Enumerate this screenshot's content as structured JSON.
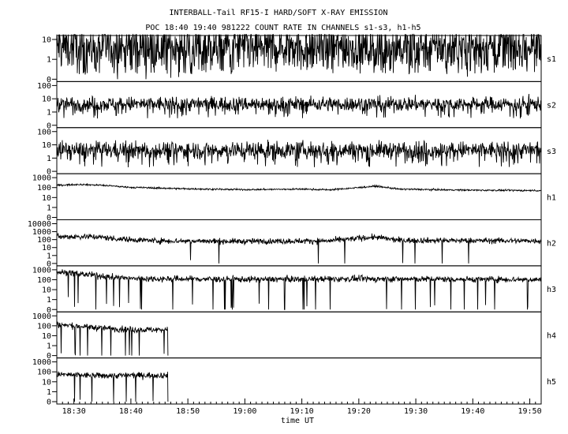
{
  "chart_data": {
    "type": "line",
    "title": "INTERBALL-Tail RF15-I HARD/SOFT X-RAY EMISSION",
    "subtitle": "POC 18:40 19:40 981222  COUNT RATE IN CHANNELS s1-s3, h1-h5",
    "xlabel": "time UT",
    "x_ticks": [
      "18:30",
      "18:40",
      "18:50",
      "19:00",
      "19:10",
      "19:20",
      "19:30",
      "19:40",
      "19:50"
    ],
    "xlim": [
      "18:27",
      "19:52"
    ],
    "y_scale": "log",
    "grid": false,
    "panels": [
      {
        "name": "s1",
        "y_ticks": [
          "10",
          "1",
          "0"
        ],
        "ylim": [
          0,
          10
        ],
        "segments": [
          {
            "start": "18:27",
            "end": "19:52",
            "level": 4.5,
            "noise": 1.2,
            "dip_prob": 0.08,
            "dip_depth": 1.4
          }
        ]
      },
      {
        "name": "s2",
        "y_ticks": [
          "100",
          "10",
          "1",
          "0"
        ],
        "ylim": [
          0,
          100
        ],
        "segments": [
          {
            "start": "18:27",
            "end": "19:52",
            "level": 4.0,
            "noise": 0.55,
            "dip_prob": 0.05,
            "dip_depth": 1.1
          }
        ]
      },
      {
        "name": "s3",
        "y_ticks": [
          "100",
          "10",
          "1",
          "0"
        ],
        "ylim": [
          0,
          100
        ],
        "segments": [
          {
            "start": "18:27",
            "end": "19:52",
            "level": 4.0,
            "noise": 0.65,
            "dip_prob": 0.06,
            "dip_depth": 1.3
          }
        ]
      },
      {
        "name": "h1",
        "y_ticks": [
          "1000",
          "100",
          "10",
          "1",
          "0"
        ],
        "ylim": [
          0,
          1000
        ],
        "segments": [
          {
            "start": "18:27",
            "end": "19:52",
            "noise": 0.08,
            "dip_prob": 0.0,
            "dip_depth": 0,
            "profile": [
              [
                "18:27",
                170
              ],
              [
                "18:31",
                210
              ],
              [
                "18:35",
                170
              ],
              [
                "18:40",
                105
              ],
              [
                "18:50",
                75
              ],
              [
                "19:00",
                62
              ],
              [
                "19:10",
                70
              ],
              [
                "19:15",
                60
              ],
              [
                "19:20",
                100
              ],
              [
                "19:23",
                140
              ],
              [
                "19:27",
                70
              ],
              [
                "19:40",
                55
              ],
              [
                "19:52",
                50
              ]
            ]
          }
        ]
      },
      {
        "name": "h2",
        "y_ticks": [
          "10000",
          "1000",
          "100",
          "10",
          "1",
          "0"
        ],
        "ylim": [
          0,
          10000
        ],
        "segments": [
          {
            "start": "18:27",
            "end": "19:52",
            "noise": 0.35,
            "dip_prob": 0.012,
            "dip_depth": 4,
            "profile": [
              [
                "18:27",
                230
              ],
              [
                "18:33",
                250
              ],
              [
                "18:38",
                120
              ],
              [
                "18:45",
                70
              ],
              [
                "19:00",
                60
              ],
              [
                "19:15",
                70
              ],
              [
                "19:20",
                150
              ],
              [
                "19:23",
                200
              ],
              [
                "19:27",
                80
              ],
              [
                "19:52",
                70
              ]
            ]
          }
        ]
      },
      {
        "name": "h3",
        "y_ticks": [
          "1000",
          "100",
          "10",
          "1",
          "0"
        ],
        "ylim": [
          0,
          1000
        ],
        "segments": [
          {
            "start": "18:27",
            "end": "19:52",
            "noise": 0.3,
            "dip_prob": 0.02,
            "dip_depth": 4,
            "profile": [
              [
                "18:27",
                600
              ],
              [
                "18:30",
                450
              ],
              [
                "18:35",
                220
              ],
              [
                "18:40",
                130
              ],
              [
                "19:00",
                110
              ],
              [
                "19:20",
                120
              ],
              [
                "19:52",
                105
              ]
            ]
          }
        ]
      },
      {
        "name": "h4",
        "y_ticks": [
          "1000",
          "100",
          "10",
          "1",
          "0"
        ],
        "ylim": [
          0,
          1000
        ],
        "segments": [
          {
            "start": "18:27",
            "end": "18:46.5",
            "noise": 0.3,
            "dip_prob": 0.03,
            "dip_depth": 4,
            "profile": [
              [
                "18:27",
                130
              ],
              [
                "18:35",
                60
              ],
              [
                "18:40",
                40
              ],
              [
                "18:46.5",
                40
              ]
            ]
          }
        ]
      },
      {
        "name": "h5",
        "y_ticks": [
          "1000",
          "100",
          "10",
          "1",
          "0"
        ],
        "ylim": [
          0,
          1000
        ],
        "segments": [
          {
            "start": "18:27",
            "end": "18:46.5",
            "noise": 0.3,
            "dip_prob": 0.03,
            "dip_depth": 4,
            "profile": [
              [
                "18:27",
                55
              ],
              [
                "18:35",
                40
              ],
              [
                "18:40",
                45
              ],
              [
                "18:46.5",
                45
              ]
            ]
          }
        ]
      }
    ]
  }
}
